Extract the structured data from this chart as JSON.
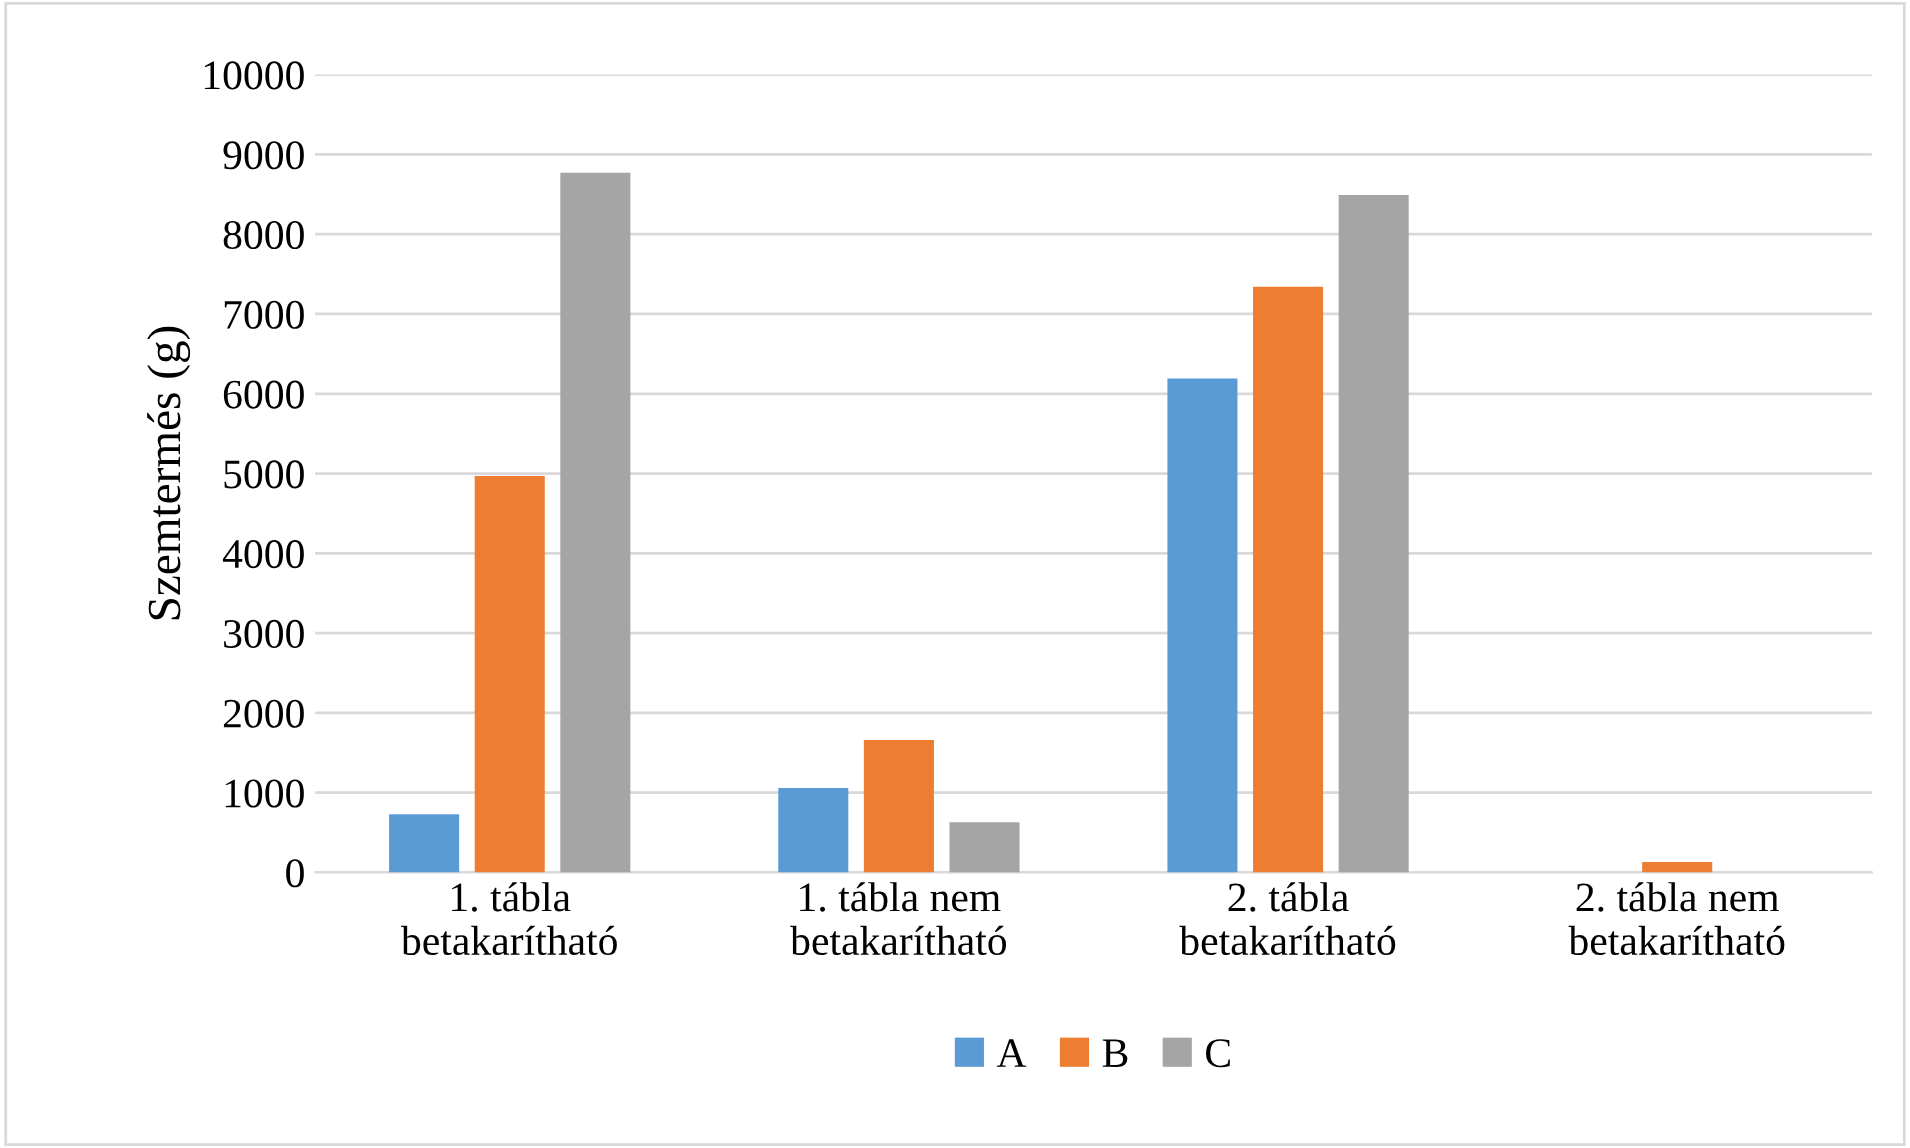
{
  "chart_data": {
    "type": "bar",
    "ylabel": "Szemtermés (g)",
    "categories": [
      "1. tábla\nbetakarítható",
      "1. tábla nem\nbetakarítható",
      "2. tábla\nbetakarítható",
      "2. tábla nem\nbetakarítható"
    ],
    "series": [
      {
        "name": "A",
        "color": "#5b9bd5",
        "values": [
          730,
          1060,
          6190,
          0
        ]
      },
      {
        "name": "B",
        "color": "#ed7d31",
        "values": [
          4970,
          1660,
          7340,
          130
        ]
      },
      {
        "name": "C",
        "color": "#a5a5a5",
        "values": [
          8770,
          630,
          8490,
          0
        ]
      }
    ],
    "ylim": [
      0,
      10000
    ],
    "yticks": [
      0,
      1000,
      2000,
      3000,
      4000,
      5000,
      6000,
      7000,
      8000,
      9000,
      10000
    ],
    "grid": "y",
    "legend": "bottom"
  }
}
